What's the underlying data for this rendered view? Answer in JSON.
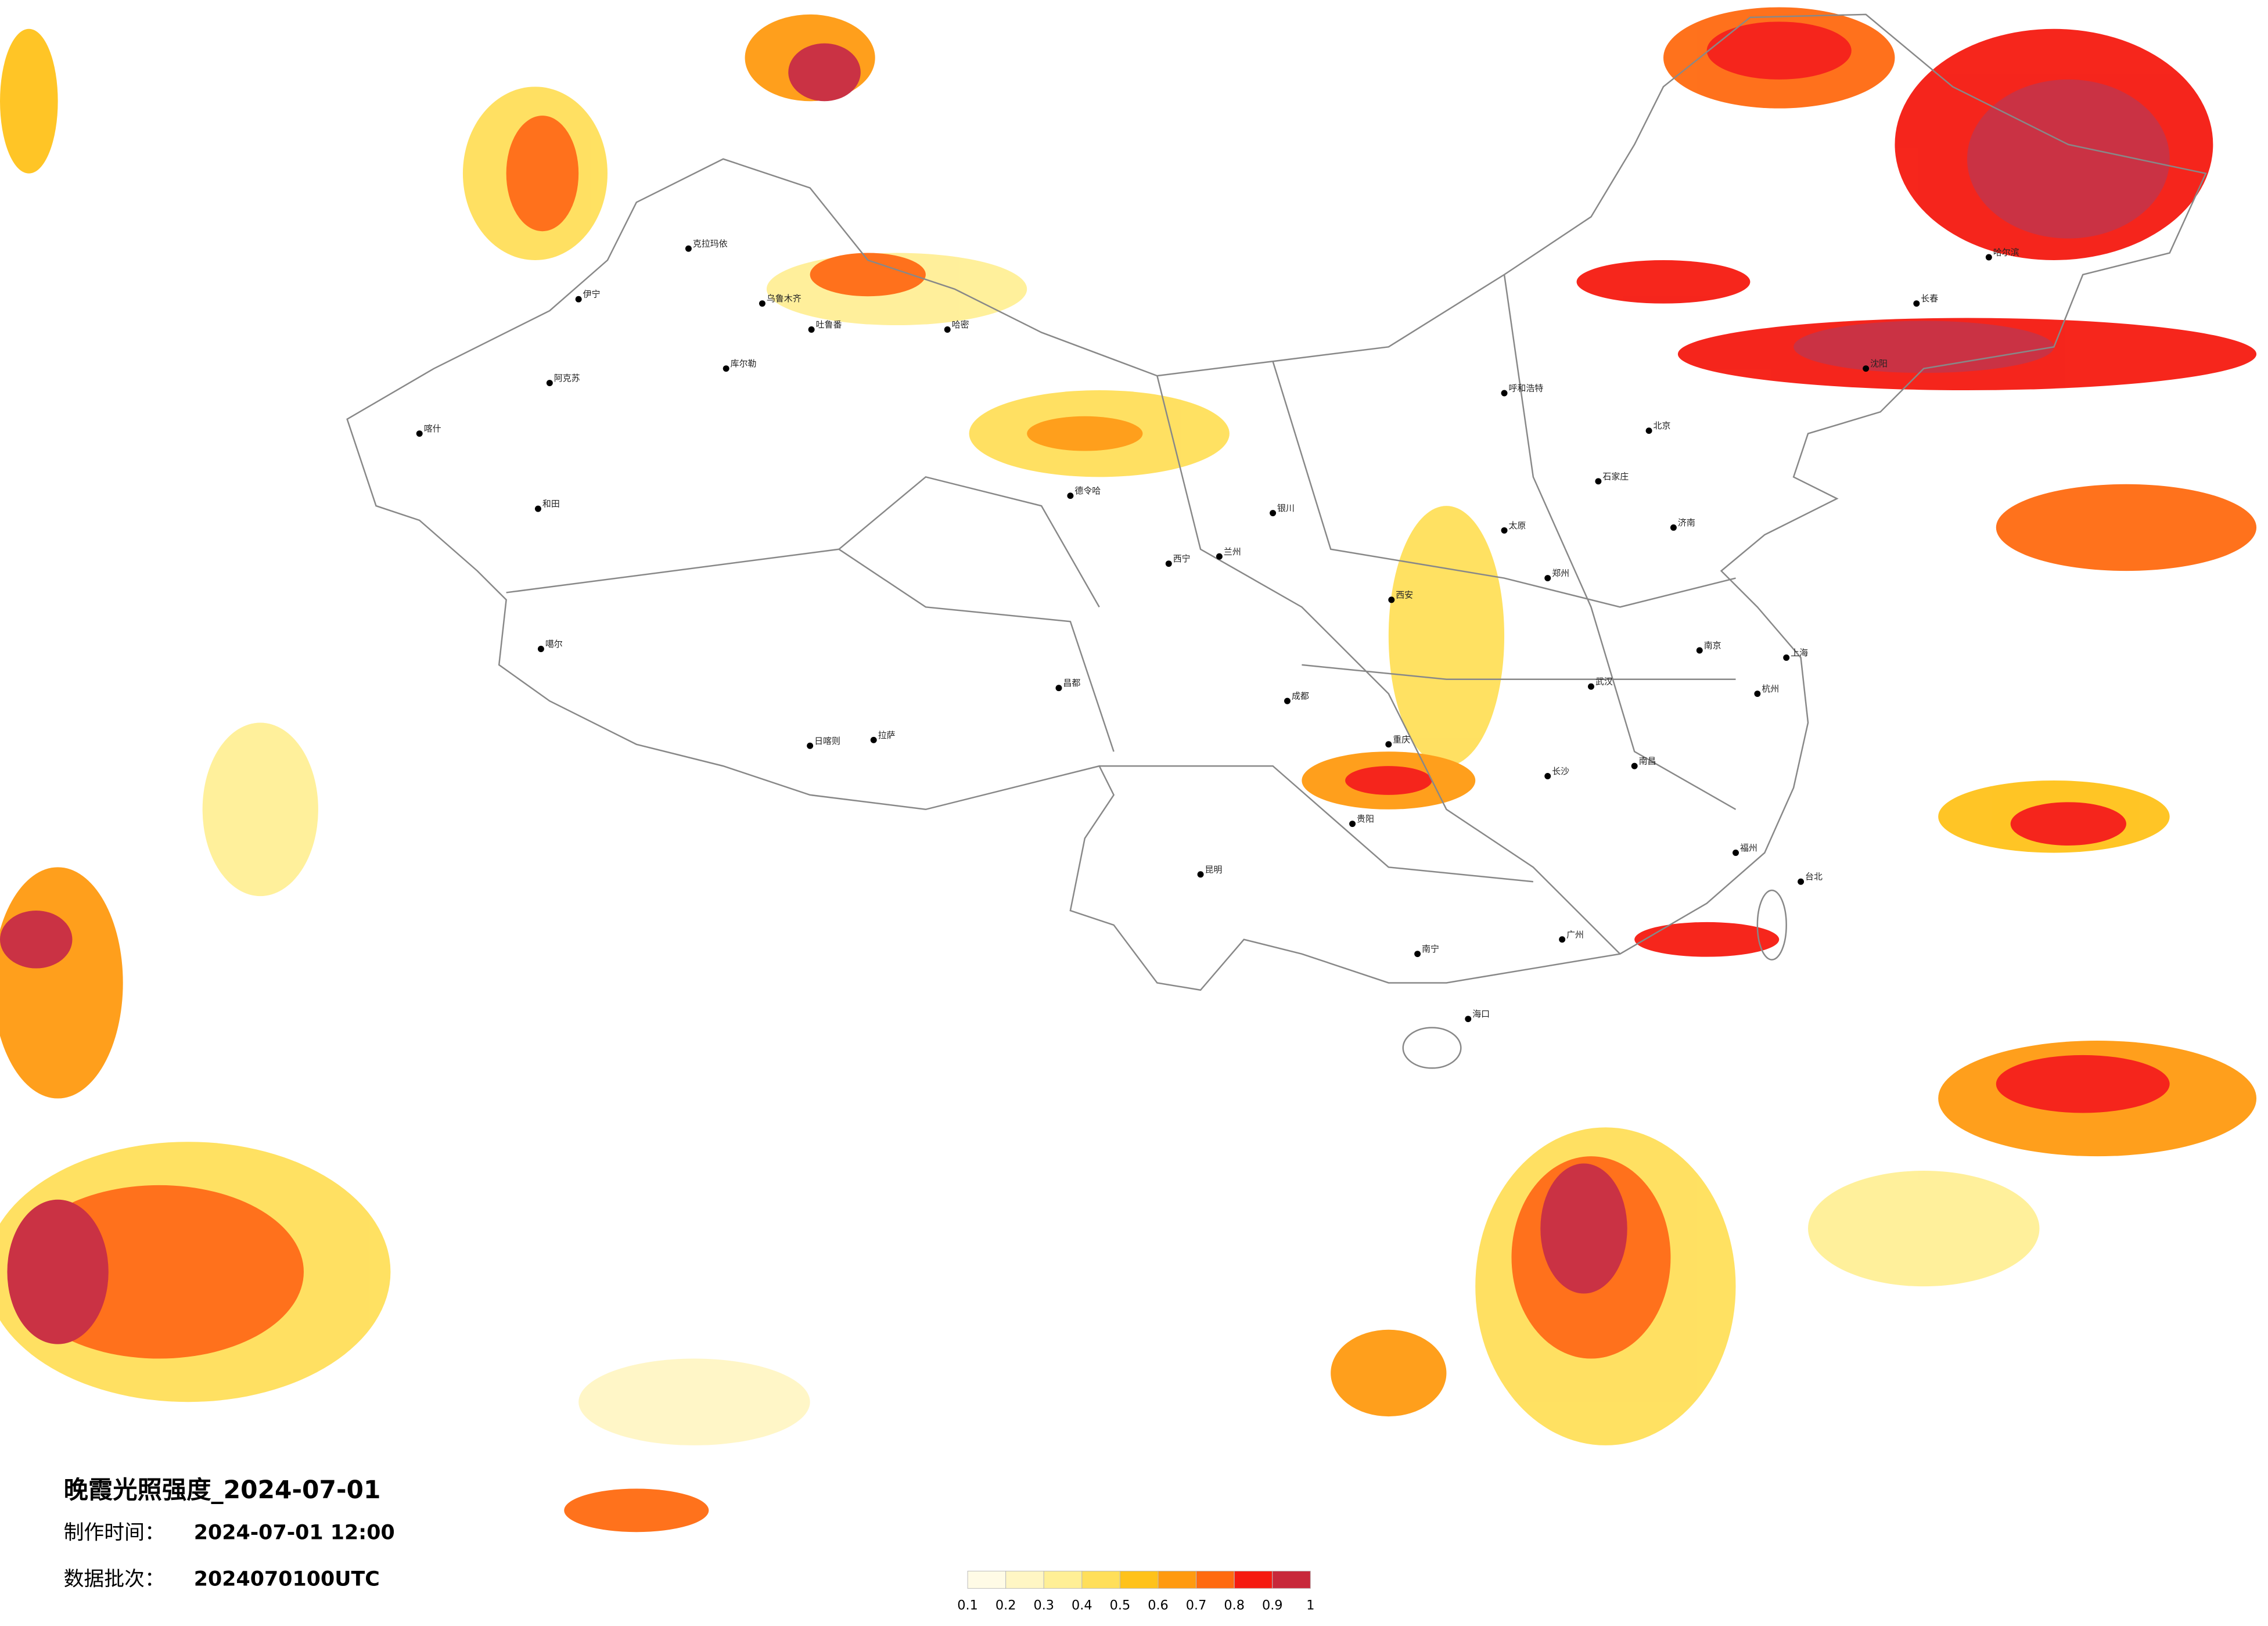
{
  "header": {
    "title": "晚霞光照强度_2024-07-01",
    "made_label": "制作时间：",
    "made_time": "2024-07-01 12:00",
    "batch_label": "数据批次：",
    "batch": "2024070100UTC"
  },
  "legend": {
    "ticks": [
      0.1,
      0.2,
      0.3,
      0.4,
      0.5,
      0.6,
      0.7,
      0.8,
      0.9,
      1
    ],
    "colors": [
      "#fffbe6",
      "#fff6c4",
      "#ffef96",
      "#ffdf5a",
      "#ffc21a",
      "#ff9a10",
      "#ff6a10",
      "#f51a10",
      "#c8283a"
    ]
  },
  "cities": [
    "克拉玛依",
    "乌鲁木齐",
    "伊宁",
    "阿克苏",
    "喀什",
    "和田",
    "库尔勒",
    "吐鲁番",
    "哈密",
    "德令哈",
    "拉萨",
    "日喀则",
    "昌都",
    "噶尔",
    "西宁",
    "兰州",
    "银川",
    "呼和浩特",
    "北京",
    "石家庄",
    "太原",
    "济南",
    "郑州",
    "西安",
    "武汉",
    "成都",
    "重庆",
    "长沙",
    "南昌",
    "杭州",
    "上海",
    "南京",
    "福州",
    "广州",
    "南宁",
    "海口",
    "昆明",
    "贵阳",
    "哈尔滨",
    "长春",
    "沈阳",
    "台北"
  ]
}
